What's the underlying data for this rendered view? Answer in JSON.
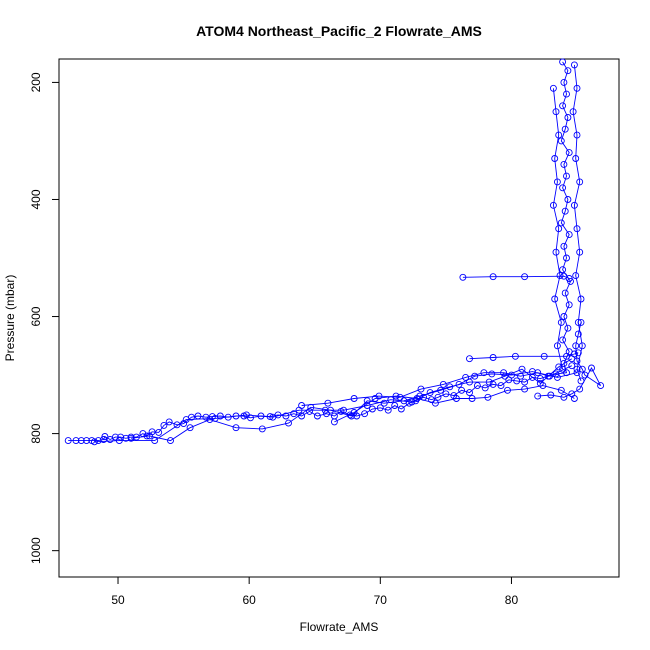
{
  "chart_data": {
    "type": "scatter",
    "title": "ATOM4 Northeast_Pacific_2 Flowrate_AMS",
    "xlabel": "Flowrate_AMS",
    "ylabel": "Pressure (mbar)",
    "xlim": [
      45.5,
      88.2
    ],
    "ylim": [
      1045,
      160
    ],
    "y_reversed": true,
    "grid": false,
    "xticks": [
      50,
      60,
      70,
      80
    ],
    "yticks": [
      200,
      400,
      600,
      800,
      1000
    ],
    "marker": "open-circle",
    "connected": true,
    "color": "#0000ff",
    "series": [
      {
        "points": [
          [
            46.2,
            812
          ],
          [
            46.8,
            812
          ],
          [
            47.2,
            812
          ],
          [
            47.6,
            812
          ],
          [
            48.0,
            812
          ],
          [
            48.5,
            812
          ],
          [
            48.9,
            810
          ],
          [
            49.0,
            805
          ],
          [
            49.4,
            810
          ],
          [
            49.8,
            806
          ],
          [
            50.2,
            806
          ],
          [
            50.6,
            808
          ],
          [
            51.0,
            806
          ],
          [
            51.4,
            806
          ],
          [
            51.9,
            800
          ],
          [
            52.2,
            804
          ],
          [
            52.6,
            797
          ],
          [
            53.1,
            798
          ],
          [
            53.5,
            786
          ],
          [
            53.9,
            780
          ],
          [
            54.5,
            785
          ],
          [
            55.0,
            783
          ],
          [
            55.6,
            772
          ],
          [
            56.1,
            770
          ],
          [
            56.7,
            772
          ],
          [
            57.2,
            771
          ],
          [
            57.8,
            770
          ],
          [
            58.4,
            772
          ],
          [
            59.0,
            770
          ],
          [
            59.6,
            770
          ],
          [
            60.1,
            773
          ],
          [
            60.9,
            770
          ],
          [
            61.6,
            771
          ],
          [
            62.2,
            768
          ],
          [
            62.8,
            770
          ],
          [
            63.4,
            766
          ],
          [
            64.0,
            770
          ],
          [
            64.6,
            762
          ],
          [
            65.2,
            770
          ],
          [
            65.9,
            766
          ],
          [
            66.5,
            770
          ],
          [
            67.0,
            762
          ],
          [
            67.7,
            768
          ],
          [
            68.2,
            770
          ],
          [
            68.8,
            766
          ],
          [
            69.4,
            758
          ],
          [
            70.0,
            756
          ],
          [
            70.6,
            760
          ],
          [
            71.1,
            752
          ],
          [
            71.6,
            758
          ],
          [
            72.2,
            748
          ],
          [
            72.7,
            744
          ],
          [
            73.3,
            738
          ],
          [
            73.9,
            742
          ],
          [
            74.4,
            738
          ],
          [
            75.0,
            732
          ],
          [
            75.6,
            735
          ],
          [
            76.2,
            726
          ],
          [
            76.8,
            730
          ],
          [
            77.4,
            718
          ],
          [
            78.0,
            722
          ],
          [
            78.6,
            716
          ],
          [
            79.2,
            718
          ],
          [
            79.8,
            708
          ],
          [
            80.4,
            710
          ],
          [
            81.0,
            712
          ],
          [
            81.6,
            704
          ],
          [
            82.2,
            706
          ],
          [
            82.8,
            702
          ],
          [
            83.4,
            698
          ],
          [
            84.2,
            696
          ],
          [
            84.0,
            680
          ],
          [
            84.4,
            660
          ],
          [
            83.9,
            640
          ],
          [
            84.3,
            620
          ],
          [
            84.0,
            600
          ],
          [
            84.4,
            580
          ],
          [
            84.1,
            560
          ],
          [
            84.5,
            540
          ],
          [
            83.9,
            520
          ],
          [
            84.2,
            500
          ],
          [
            84.0,
            480
          ],
          [
            84.4,
            460
          ],
          [
            83.8,
            440
          ],
          [
            84.1,
            420
          ],
          [
            84.3,
            400
          ],
          [
            83.9,
            380
          ],
          [
            84.2,
            360
          ],
          [
            84.0,
            340
          ],
          [
            84.4,
            320
          ],
          [
            83.8,
            300
          ],
          [
            84.1,
            280
          ],
          [
            84.3,
            260
          ],
          [
            83.9,
            240
          ],
          [
            84.2,
            220
          ],
          [
            84.0,
            200
          ],
          [
            84.3,
            180
          ],
          [
            83.9,
            165
          ]
        ]
      },
      {
        "points": [
          [
            51.0,
            808
          ],
          [
            52.4,
            804
          ],
          [
            54.0,
            812
          ],
          [
            55.5,
            790
          ],
          [
            57.0,
            776
          ],
          [
            59.0,
            790
          ],
          [
            61.0,
            792
          ],
          [
            63.0,
            782
          ],
          [
            64.7,
            755
          ],
          [
            66.2,
            760
          ],
          [
            67.8,
            770
          ],
          [
            69.0,
            744
          ],
          [
            70.3,
            748
          ],
          [
            71.8,
            744
          ],
          [
            73.0,
            736
          ],
          [
            74.6,
            726
          ],
          [
            76.0,
            716
          ],
          [
            77.2,
            702
          ],
          [
            78.5,
            698
          ],
          [
            80.0,
            700
          ],
          [
            81.6,
            694
          ],
          [
            82.9,
            702
          ],
          [
            84.6,
            684
          ]
        ]
      },
      {
        "points": [
          [
            48.2,
            814
          ],
          [
            50.1,
            812
          ],
          [
            52.8,
            812
          ],
          [
            55.2,
            776
          ],
          [
            57.4,
            774
          ],
          [
            59.8,
            768
          ],
          [
            61.8,
            772
          ],
          [
            63.8,
            760
          ],
          [
            65.8,
            760
          ],
          [
            67.2,
            760
          ],
          [
            69.0,
            752
          ],
          [
            70.8,
            742
          ],
          [
            72.4,
            746
          ],
          [
            73.8,
            730
          ],
          [
            75.3,
            720
          ],
          [
            76.8,
            712
          ],
          [
            78.3,
            712
          ],
          [
            79.5,
            702
          ],
          [
            80.8,
            690
          ],
          [
            82.2,
            714
          ],
          [
            83.6,
            686
          ],
          [
            84.6,
            672
          ]
        ]
      },
      {
        "points": [
          [
            66.5,
            780
          ],
          [
            68.0,
            764
          ],
          [
            69.6,
            740
          ],
          [
            71.2,
            736
          ],
          [
            72.8,
            740
          ],
          [
            74.2,
            748
          ],
          [
            75.8,
            740
          ],
          [
            77.0,
            740
          ],
          [
            78.2,
            738
          ],
          [
            79.7,
            726
          ],
          [
            81.0,
            724
          ],
          [
            82.4,
            718
          ],
          [
            83.8,
            726
          ],
          [
            84.8,
            740
          ]
        ]
      },
      {
        "points": [
          [
            64.0,
            752
          ],
          [
            66.0,
            748
          ],
          [
            68.0,
            740
          ],
          [
            69.9,
            736
          ],
          [
            71.5,
            738
          ],
          [
            73.1,
            724
          ],
          [
            74.8,
            716
          ],
          [
            76.5,
            704
          ],
          [
            77.9,
            696
          ],
          [
            79.4,
            696
          ],
          [
            80.7,
            702
          ],
          [
            82.0,
            696
          ],
          [
            83.5,
            704
          ],
          [
            85.0,
            696
          ]
        ]
      },
      {
        "points": [
          [
            76.3,
            533
          ],
          [
            78.6,
            532
          ],
          [
            81.0,
            532
          ],
          [
            84.0,
            531
          ],
          [
            84.4,
            535
          ]
        ]
      },
      {
        "points": [
          [
            76.8,
            672
          ],
          [
            78.6,
            670
          ],
          [
            80.3,
            668
          ],
          [
            82.5,
            668
          ],
          [
            84.2,
            668
          ],
          [
            84.8,
            664
          ],
          [
            85.1,
            662
          ]
        ]
      },
      {
        "points": [
          [
            82.0,
            736
          ],
          [
            83.0,
            734
          ],
          [
            84.0,
            738
          ],
          [
            84.6,
            732
          ],
          [
            85.2,
            724
          ],
          [
            86.1,
            688
          ],
          [
            86.8,
            718
          ],
          [
            85.6,
            700
          ],
          [
            85.4,
            690
          ],
          [
            85.0,
            676
          ],
          [
            84.9,
            650
          ],
          [
            85.1,
            630
          ],
          [
            85.3,
            610
          ]
        ]
      },
      {
        "points": [
          [
            83.2,
            210
          ],
          [
            83.4,
            250
          ],
          [
            83.6,
            290
          ],
          [
            83.3,
            330
          ],
          [
            83.5,
            370
          ],
          [
            83.2,
            410
          ],
          [
            83.6,
            450
          ],
          [
            83.4,
            490
          ],
          [
            83.7,
            530
          ],
          [
            83.3,
            570
          ],
          [
            83.8,
            610
          ],
          [
            83.5,
            650
          ],
          [
            83.9,
            690
          ]
        ]
      },
      {
        "points": [
          [
            84.8,
            170
          ],
          [
            85.0,
            210
          ],
          [
            84.7,
            250
          ],
          [
            85.0,
            290
          ],
          [
            84.9,
            330
          ],
          [
            85.2,
            370
          ],
          [
            84.8,
            410
          ],
          [
            85.0,
            450
          ],
          [
            85.2,
            490
          ],
          [
            84.9,
            530
          ],
          [
            85.3,
            570
          ],
          [
            85.1,
            610
          ],
          [
            85.4,
            650
          ],
          [
            85.0,
            690
          ],
          [
            85.3,
            710
          ]
        ]
      }
    ]
  }
}
